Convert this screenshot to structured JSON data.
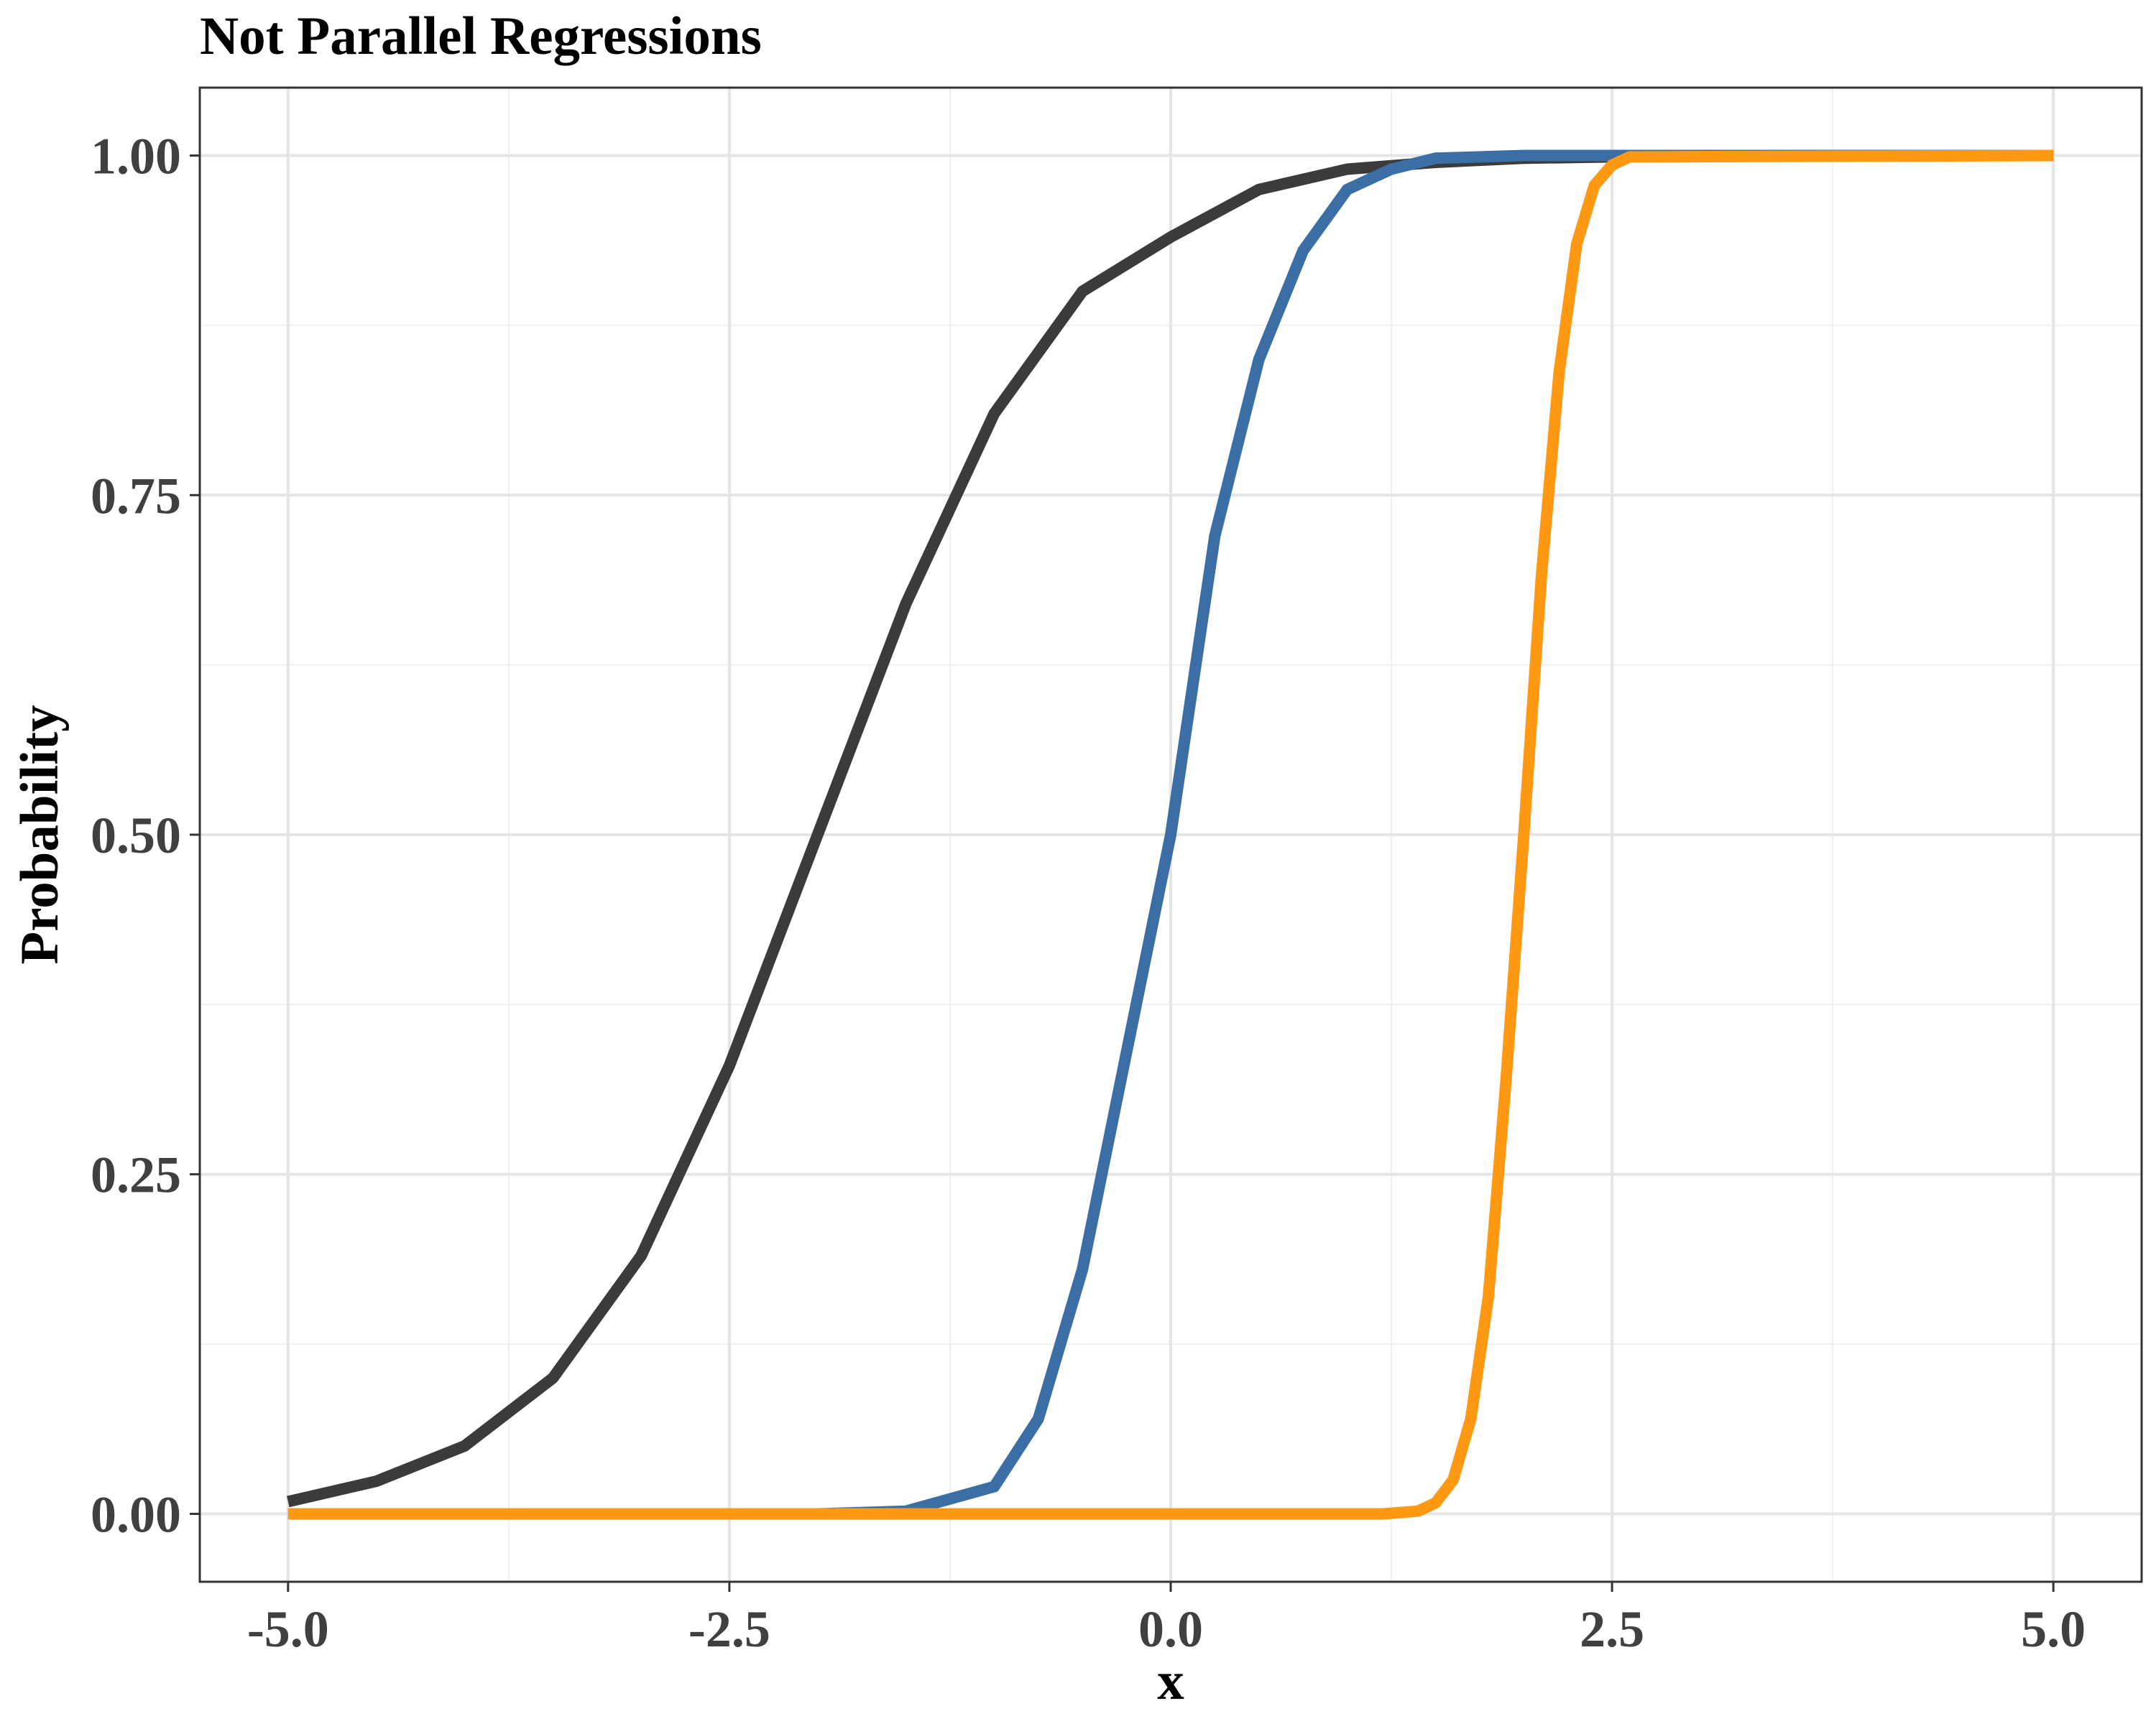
{
  "chart_data": {
    "type": "line",
    "title": "Not Parallel Regressions",
    "xlabel": "x",
    "ylabel": "Probability",
    "xlim": [
      -5.5,
      5.5
    ],
    "ylim": [
      -0.05,
      1.05
    ],
    "grid": true,
    "legend": "none",
    "x_ticks": [
      -5.0,
      -2.5,
      0.0,
      2.5,
      5.0
    ],
    "x_tick_labels": [
      "-5.0",
      "-2.5",
      "0.0",
      "2.5",
      "5.0"
    ],
    "y_ticks": [
      0.0,
      0.25,
      0.5,
      0.75,
      1.0
    ],
    "y_tick_labels": [
      "0.00",
      "0.25",
      "0.50",
      "0.75",
      "1.00"
    ],
    "x_minor": [
      -3.75,
      -1.25,
      1.25,
      3.75
    ],
    "y_minor": [
      0.125,
      0.375,
      0.625,
      0.875
    ],
    "series": [
      {
        "color": "#3b3b3b",
        "x": [
          -5.0,
          -4.5,
          -4.0,
          -3.5,
          -3.0,
          -2.5,
          -2.0,
          -1.5,
          -1.0,
          -0.5,
          0.0,
          0.5,
          1.0,
          1.5,
          2.0,
          2.5,
          3.0,
          4.0,
          5.0
        ],
        "y": [
          0.009,
          0.024,
          0.05,
          0.1,
          0.19,
          0.33,
          0.5,
          0.67,
          0.81,
          0.9,
          0.94,
          0.975,
          0.99,
          0.995,
          0.998,
          0.999,
          1.0,
          1.0,
          1.0
        ]
      },
      {
        "color": "#3a6ea5",
        "x": [
          -5.0,
          -2.0,
          -1.5,
          -1.0,
          -0.75,
          -0.5,
          -0.25,
          0.0,
          0.25,
          0.5,
          0.75,
          1.0,
          1.25,
          1.5,
          2.0,
          5.0
        ],
        "y": [
          0.0,
          0.0,
          0.002,
          0.02,
          0.07,
          0.18,
          0.34,
          0.5,
          0.72,
          0.85,
          0.93,
          0.975,
          0.99,
          0.998,
          1.0,
          1.0
        ]
      },
      {
        "color": "#ff9914",
        "x": [
          -5.0,
          1.2,
          1.4,
          1.5,
          1.6,
          1.7,
          1.8,
          1.9,
          2.0,
          2.1,
          2.2,
          2.3,
          2.4,
          2.5,
          2.6,
          5.0
        ],
        "y": [
          0.0,
          0.0,
          0.002,
          0.008,
          0.025,
          0.07,
          0.16,
          0.32,
          0.5,
          0.69,
          0.84,
          0.935,
          0.978,
          0.993,
          0.999,
          1.0
        ]
      }
    ]
  }
}
